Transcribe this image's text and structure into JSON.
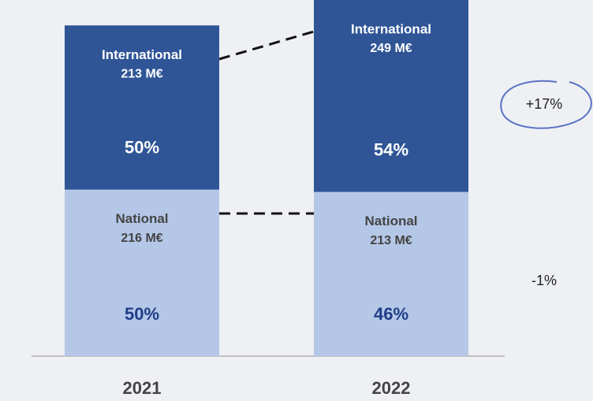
{
  "chart_data": {
    "type": "stacked-bar",
    "categories": [
      "2021",
      "2022"
    ],
    "ylim": [
      0,
      462
    ],
    "series": [
      {
        "name": "National",
        "color": "#b4c7e7",
        "text_color": "#444444",
        "share_color": "#1f3c88",
        "values": [
          216,
          213
        ],
        "value_labels": [
          "216 M€",
          "213 M€"
        ],
        "share_labels": [
          "50%",
          "46%"
        ],
        "change_label": "-1%"
      },
      {
        "name": "International",
        "color": "#2f5597",
        "text_color": "#ffffff",
        "share_color": "#ffffff",
        "values": [
          213,
          249
        ],
        "value_labels": [
          "213 M€",
          "249 M€"
        ],
        "share_labels": [
          "50%",
          "54%"
        ],
        "change_label": "+17%"
      }
    ]
  }
}
